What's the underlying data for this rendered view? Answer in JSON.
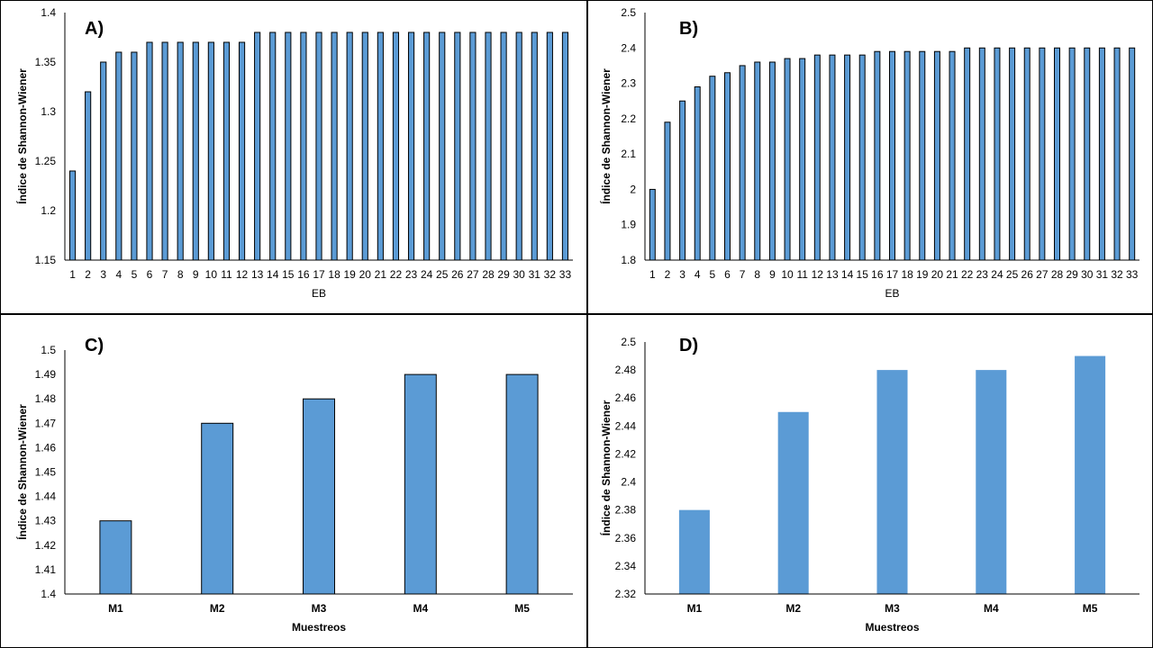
{
  "colors": {
    "bar": "#5b9bd5",
    "bar_edge": "#000000",
    "axis": "#000000",
    "background": "#ffffff"
  },
  "chart_data": [
    {
      "type": "bar",
      "label": "A)",
      "xlabel": "EB",
      "ylabel": "Índice de Shannon-Wiener",
      "ylim": [
        1.15,
        1.4
      ],
      "yticks": [
        "1.15",
        "1.2",
        "1.25",
        "1.3",
        "1.35",
        "1.4"
      ],
      "grid": false,
      "bar_outline": true,
      "categories": [
        "1",
        "2",
        "3",
        "4",
        "5",
        "6",
        "7",
        "8",
        "9",
        "10",
        "11",
        "12",
        "13",
        "14",
        "15",
        "16",
        "17",
        "18",
        "19",
        "20",
        "21",
        "22",
        "23",
        "24",
        "25",
        "26",
        "27",
        "28",
        "29",
        "30",
        "31",
        "32",
        "33"
      ],
      "values": [
        1.24,
        1.32,
        1.35,
        1.36,
        1.36,
        1.37,
        1.37,
        1.37,
        1.37,
        1.37,
        1.37,
        1.37,
        1.38,
        1.38,
        1.38,
        1.38,
        1.38,
        1.38,
        1.38,
        1.38,
        1.38,
        1.38,
        1.38,
        1.38,
        1.38,
        1.38,
        1.38,
        1.38,
        1.38,
        1.38,
        1.38,
        1.38,
        1.38
      ]
    },
    {
      "type": "bar",
      "label": "B)",
      "xlabel": "EB",
      "ylabel": "Índice de Shannon-Wiener",
      "ylim": [
        1.8,
        2.5
      ],
      "yticks": [
        "1.8",
        "1.9",
        "2",
        "2.1",
        "2.2",
        "2.3",
        "2.4",
        "2.5"
      ],
      "grid": false,
      "bar_outline": true,
      "categories": [
        "1",
        "2",
        "3",
        "4",
        "5",
        "6",
        "7",
        "8",
        "9",
        "10",
        "11",
        "12",
        "13",
        "14",
        "15",
        "16",
        "17",
        "18",
        "19",
        "20",
        "21",
        "22",
        "23",
        "24",
        "25",
        "26",
        "27",
        "28",
        "29",
        "30",
        "31",
        "32",
        "33"
      ],
      "values": [
        2.0,
        2.19,
        2.25,
        2.29,
        2.32,
        2.33,
        2.35,
        2.36,
        2.36,
        2.37,
        2.37,
        2.38,
        2.38,
        2.38,
        2.38,
        2.39,
        2.39,
        2.39,
        2.39,
        2.39,
        2.39,
        2.4,
        2.4,
        2.4,
        2.4,
        2.4,
        2.4,
        2.4,
        2.4,
        2.4,
        2.4,
        2.4,
        2.4
      ]
    },
    {
      "type": "bar",
      "label": "C)",
      "xlabel": "Muestreos",
      "ylabel": "Índice de Shannon-Wiener",
      "ylim": [
        1.4,
        1.5
      ],
      "yticks": [
        "1.4",
        "1.41",
        "1.42",
        "1.43",
        "1.44",
        "1.45",
        "1.46",
        "1.47",
        "1.48",
        "1.49",
        "1.5"
      ],
      "grid": false,
      "bar_outline": true,
      "categories": [
        "M1",
        "M2",
        "M3",
        "M4",
        "M5"
      ],
      "values": [
        1.43,
        1.47,
        1.48,
        1.49,
        1.49
      ]
    },
    {
      "type": "bar",
      "label": "D)",
      "xlabel": "Muestreos",
      "ylabel": "Índice de Shannon-Wiener",
      "ylim": [
        2.32,
        2.5
      ],
      "yticks": [
        "2.32",
        "2.34",
        "2.36",
        "2.38",
        "2.4",
        "2.42",
        "2.44",
        "2.46",
        "2.48",
        "2.5"
      ],
      "grid": false,
      "bar_outline": false,
      "categories": [
        "M1",
        "M2",
        "M3",
        "M4",
        "M5"
      ],
      "values": [
        2.38,
        2.45,
        2.48,
        2.48,
        2.49
      ]
    }
  ]
}
